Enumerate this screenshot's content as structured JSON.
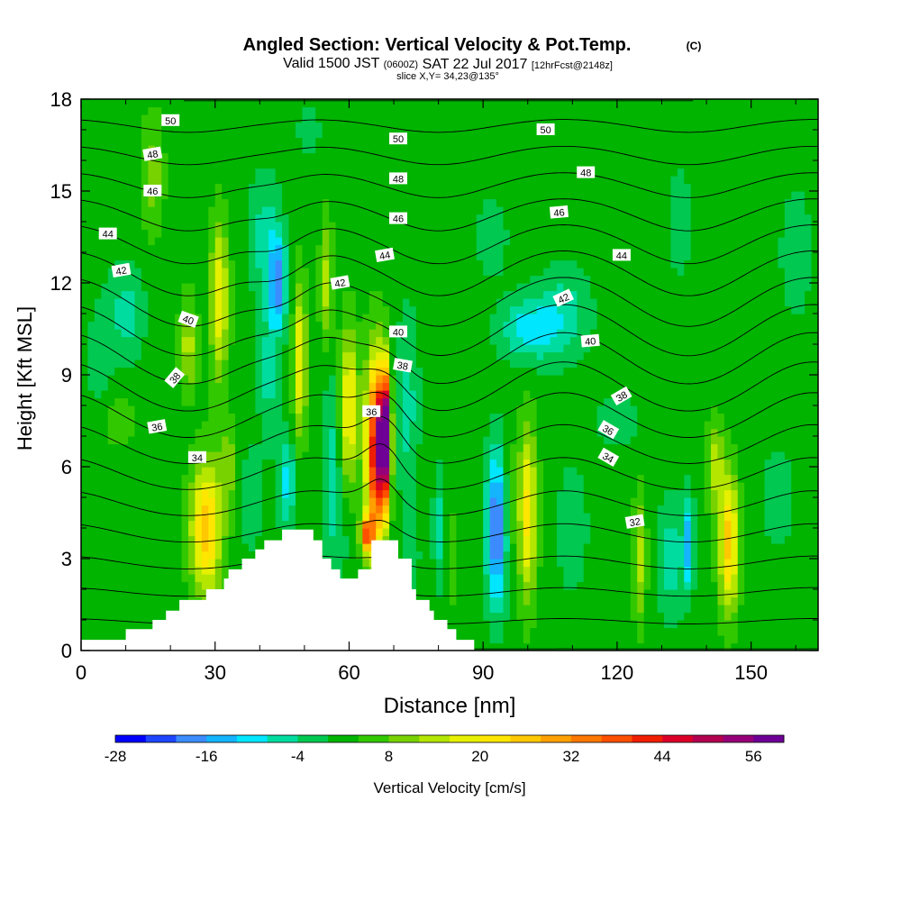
{
  "chart_data": {
    "type": "heatmap",
    "title": "Angled Section: Vertical Velocity & Pot.Temp.",
    "title_unit": "(C)",
    "subtitle": {
      "valid_prefix": "Valid 1500 JST",
      "utc": "(0600Z)",
      "date": "SAT 22 Jul 2017",
      "forecast": "[12hrFcst@2148z]"
    },
    "slice_label": "slice X,Y= 34,23@135°",
    "xlabel": "Distance [nm]",
    "ylabel": "Height [Kft MSL]",
    "xlim": [
      0,
      165
    ],
    "ylim": [
      0,
      18
    ],
    "x_ticks": [
      "0",
      "30",
      "60",
      "90",
      "120",
      "150"
    ],
    "y_ticks": [
      "0",
      "3",
      "6",
      "9",
      "12",
      "15",
      "18"
    ],
    "colorbar": {
      "label": "Vertical Velocity [cm/s]",
      "min": -28,
      "max": 60,
      "step": 4,
      "tick_labels": [
        "-28",
        "-16",
        "-4",
        "8",
        "20",
        "32",
        "44",
        "56"
      ],
      "colors": [
        "#0000ff",
        "#1e46ff",
        "#3c8cff",
        "#14b4ff",
        "#00e6ff",
        "#00dca0",
        "#00c850",
        "#00b400",
        "#32c800",
        "#78d200",
        "#b4e600",
        "#e6f000",
        "#ffe600",
        "#ffc800",
        "#ffa000",
        "#ff7800",
        "#ff5000",
        "#f01e00",
        "#dc0028",
        "#b40050",
        "#960078",
        "#6e0096"
      ]
    },
    "background_level": 0,
    "velocity_cells": [
      {
        "x": 4,
        "z": 9.5,
        "rx": 3,
        "rz": 2.0,
        "v": -4
      },
      {
        "x": 10,
        "z": 11,
        "rx": 4,
        "rz": 1.5,
        "v": -8
      },
      {
        "x": 8,
        "z": 7.5,
        "rx": 5,
        "rz": 1.0,
        "v": 4
      },
      {
        "x": 16,
        "z": 15.5,
        "rx": 2.5,
        "rz": 2.0,
        "v": 8
      },
      {
        "x": 24,
        "z": 10.0,
        "rx": 2,
        "rz": 1.5,
        "v": 12
      },
      {
        "x": 28,
        "z": 4.0,
        "rx": 3.5,
        "rz": 2.2,
        "v": 24
      },
      {
        "x": 31,
        "z": 11.5,
        "rx": 2,
        "rz": 2.5,
        "v": 18
      },
      {
        "x": 33,
        "z": 6.0,
        "rx": 2,
        "rz": 1.5,
        "v": 8
      },
      {
        "x": 38,
        "z": 5.0,
        "rx": 3,
        "rz": 2.0,
        "v": -4
      },
      {
        "x": 41,
        "z": 13.5,
        "rx": 3.5,
        "rz": 2.0,
        "v": -8
      },
      {
        "x": 44,
        "z": 12.0,
        "rx": 2,
        "rz": 1.5,
        "v": -20
      },
      {
        "x": 42,
        "z": 9.0,
        "rx": 2,
        "rz": 2.0,
        "v": -8
      },
      {
        "x": 46,
        "z": 5.5,
        "rx": 2,
        "rz": 1.5,
        "v": -12
      },
      {
        "x": 49,
        "z": 9.5,
        "rx": 1.5,
        "rz": 2.5,
        "v": 18
      },
      {
        "x": 51,
        "z": 17,
        "rx": 3,
        "rz": 1.0,
        "v": -4
      },
      {
        "x": 56,
        "z": 6.0,
        "rx": 2,
        "rz": 3.0,
        "v": -8
      },
      {
        "x": 55,
        "z": 12.0,
        "rx": 1.5,
        "rz": 2.0,
        "v": 12
      },
      {
        "x": 58,
        "z": 4.0,
        "rx": 2,
        "rz": 2.0,
        "v": -4
      },
      {
        "x": 60,
        "z": 8.0,
        "rx": 2,
        "rz": 2.5,
        "v": 20
      },
      {
        "x": 66,
        "z": 6.5,
        "rx": 2.2,
        "rz": 3.0,
        "v": 44
      },
      {
        "x": 68,
        "z": 7.0,
        "rx": 1.2,
        "rz": 2.0,
        "v": 56
      },
      {
        "x": 64,
        "z": 3.8,
        "rx": 1.5,
        "rz": 0.6,
        "v": 32
      },
      {
        "x": 73,
        "z": 8.0,
        "rx": 2.5,
        "rz": 3.0,
        "v": -8
      },
      {
        "x": 74,
        "z": 3.0,
        "rx": 2,
        "rz": 1.5,
        "v": -4
      },
      {
        "x": 80,
        "z": 4.0,
        "rx": 1.2,
        "rz": 2.0,
        "v": -8
      },
      {
        "x": 83,
        "z": 3.0,
        "rx": 1.2,
        "rz": 2.0,
        "v": 4
      },
      {
        "x": 93,
        "z": 4.0,
        "rx": 2.2,
        "rz": 2.5,
        "v": -24
      },
      {
        "x": 96,
        "z": 5.0,
        "rx": 2,
        "rz": 2.0,
        "v": 4
      },
      {
        "x": 100,
        "z": 4.5,
        "rx": 2,
        "rz": 2.8,
        "v": 20
      },
      {
        "x": 100,
        "z": 10.5,
        "rx": 6,
        "rz": 1.0,
        "v": -12
      },
      {
        "x": 108,
        "z": 11.0,
        "rx": 6,
        "rz": 1.5,
        "v": -8
      },
      {
        "x": 92,
        "z": 13.5,
        "rx": 4,
        "rz": 1.5,
        "v": -4
      },
      {
        "x": 110,
        "z": 4.0,
        "rx": 4,
        "rz": 2.5,
        "v": -4
      },
      {
        "x": 120,
        "z": 7.5,
        "rx": 6,
        "rz": 1.0,
        "v": -4
      },
      {
        "x": 125,
        "z": 3.0,
        "rx": 1.5,
        "rz": 2.0,
        "v": 12
      },
      {
        "x": 132,
        "z": 3.0,
        "rx": 3,
        "rz": 2.0,
        "v": -8
      },
      {
        "x": 136,
        "z": 3.5,
        "rx": 1.2,
        "rz": 1.5,
        "v": -16
      },
      {
        "x": 145,
        "z": 3.5,
        "rx": 2.2,
        "rz": 2.2,
        "v": 24
      },
      {
        "x": 142,
        "z": 6.0,
        "rx": 2,
        "rz": 1.5,
        "v": 12
      },
      {
        "x": 156,
        "z": 5.0,
        "rx": 4,
        "rz": 2.0,
        "v": -4
      },
      {
        "x": 160,
        "z": 13,
        "rx": 4,
        "rz": 2.5,
        "v": -4
      },
      {
        "x": 134,
        "z": 14,
        "rx": 3,
        "rz": 2.0,
        "v": -4
      }
    ],
    "terrain_profile": [
      {
        "x": 0,
        "z": 0.35
      },
      {
        "x": 10,
        "z": 0.35
      },
      {
        "x": 10,
        "z": 0.7
      },
      {
        "x": 16,
        "z": 0.7
      },
      {
        "x": 16,
        "z": 1.0
      },
      {
        "x": 19,
        "z": 1.0
      },
      {
        "x": 19,
        "z": 1.3
      },
      {
        "x": 22,
        "z": 1.3
      },
      {
        "x": 22,
        "z": 1.65
      },
      {
        "x": 28,
        "z": 1.65
      },
      {
        "x": 28,
        "z": 2.0
      },
      {
        "x": 32,
        "z": 2.0
      },
      {
        "x": 32,
        "z": 2.35
      },
      {
        "x": 33,
        "z": 2.35
      },
      {
        "x": 33,
        "z": 2.65
      },
      {
        "x": 36,
        "z": 2.65
      },
      {
        "x": 36,
        "z": 3.0
      },
      {
        "x": 39,
        "z": 3.0
      },
      {
        "x": 39,
        "z": 3.3
      },
      {
        "x": 41,
        "z": 3.3
      },
      {
        "x": 41,
        "z": 3.6
      },
      {
        "x": 45,
        "z": 3.6
      },
      {
        "x": 45,
        "z": 3.95
      },
      {
        "x": 52,
        "z": 3.95
      },
      {
        "x": 52,
        "z": 3.6
      },
      {
        "x": 54,
        "z": 3.6
      },
      {
        "x": 54,
        "z": 3.0
      },
      {
        "x": 56,
        "z": 3.0
      },
      {
        "x": 56,
        "z": 2.65
      },
      {
        "x": 58,
        "z": 2.65
      },
      {
        "x": 58,
        "z": 2.35
      },
      {
        "x": 62,
        "z": 2.35
      },
      {
        "x": 62,
        "z": 2.65
      },
      {
        "x": 65,
        "z": 2.65
      },
      {
        "x": 65,
        "z": 3.6
      },
      {
        "x": 71,
        "z": 3.6
      },
      {
        "x": 71,
        "z": 3.0
      },
      {
        "x": 74,
        "z": 3.0
      },
      {
        "x": 74,
        "z": 2.0
      },
      {
        "x": 75,
        "z": 2.0
      },
      {
        "x": 75,
        "z": 1.65
      },
      {
        "x": 78,
        "z": 1.65
      },
      {
        "x": 78,
        "z": 1.3
      },
      {
        "x": 79,
        "z": 1.3
      },
      {
        "x": 79,
        "z": 1.0
      },
      {
        "x": 82,
        "z": 1.0
      },
      {
        "x": 82,
        "z": 0.7
      },
      {
        "x": 84,
        "z": 0.7
      },
      {
        "x": 84,
        "z": 0.35
      },
      {
        "x": 88,
        "z": 0.35
      },
      {
        "x": 88,
        "z": 0.0
      }
    ],
    "isotherm_levels": [
      32,
      33,
      34,
      35,
      36,
      37,
      38,
      39,
      40,
      41,
      42,
      43,
      44,
      45,
      46,
      47,
      48,
      49,
      50,
      51
    ],
    "isotherm_labels": [
      {
        "text": "50",
        "x": 20,
        "z": 17.3,
        "angle": 0
      },
      {
        "text": "48",
        "x": 16,
        "z": 16.2,
        "angle": -10
      },
      {
        "text": "46",
        "x": 16,
        "z": 15.0,
        "angle": 0
      },
      {
        "text": "44",
        "x": 6,
        "z": 13.6,
        "angle": 0
      },
      {
        "text": "42",
        "x": 9,
        "z": 12.4,
        "angle": -10
      },
      {
        "text": "40",
        "x": 24,
        "z": 10.8,
        "angle": 20
      },
      {
        "text": "38",
        "x": 21,
        "z": 8.9,
        "angle": -50
      },
      {
        "text": "36",
        "x": 17,
        "z": 7.3,
        "angle": -10
      },
      {
        "text": "34",
        "x": 26,
        "z": 6.3,
        "angle": 0
      },
      {
        "text": "50",
        "x": 71,
        "z": 16.7,
        "angle": 0
      },
      {
        "text": "48",
        "x": 71,
        "z": 15.4,
        "angle": 0
      },
      {
        "text": "46",
        "x": 71,
        "z": 14.1,
        "angle": 0
      },
      {
        "text": "44",
        "x": 68,
        "z": 12.9,
        "angle": -10
      },
      {
        "text": "42",
        "x": 58,
        "z": 12.0,
        "angle": -10
      },
      {
        "text": "40",
        "x": 71,
        "z": 10.4,
        "angle": 0
      },
      {
        "text": "38",
        "x": 72,
        "z": 9.3,
        "angle": 10
      },
      {
        "text": "36",
        "x": 65,
        "z": 7.8,
        "angle": 0
      },
      {
        "text": "50",
        "x": 104,
        "z": 17.0,
        "angle": 0
      },
      {
        "text": "48",
        "x": 113,
        "z": 15.6,
        "angle": 0
      },
      {
        "text": "46",
        "x": 107,
        "z": 14.3,
        "angle": -5
      },
      {
        "text": "44",
        "x": 121,
        "z": 12.9,
        "angle": 0
      },
      {
        "text": "42",
        "x": 108,
        "z": 11.5,
        "angle": -25
      },
      {
        "text": "40",
        "x": 114,
        "z": 10.1,
        "angle": -5
      },
      {
        "text": "38",
        "x": 121,
        "z": 8.3,
        "angle": -30
      },
      {
        "text": "36",
        "x": 118,
        "z": 7.2,
        "angle": 30
      },
      {
        "text": "34",
        "x": 118,
        "z": 6.3,
        "angle": 30
      },
      {
        "text": "32",
        "x": 124,
        "z": 4.2,
        "angle": -10
      }
    ]
  }
}
